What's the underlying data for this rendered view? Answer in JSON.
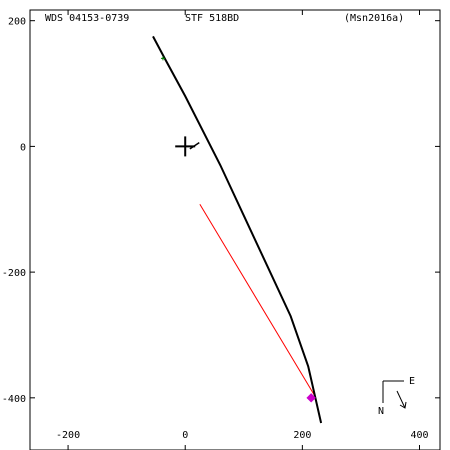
{
  "chart_data": {
    "type": "scatter",
    "header": {
      "left": "WDS 04153-0739",
      "center": "STF 518BD",
      "right": "(Msn2016a)"
    },
    "x_ticks": [
      -200,
      0,
      200,
      400
    ],
    "y_ticks": [
      200,
      0,
      -200,
      -400
    ],
    "xlim": [
      -265,
      435
    ],
    "ylim": [
      -483,
      217
    ],
    "grid": false,
    "primary_star": {
      "x": 0,
      "y": 0
    },
    "orbit_path": {
      "color": "#000000",
      "points": [
        [
          -55,
          175
        ],
        [
          -35,
          140
        ],
        [
          0,
          80
        ],
        [
          30,
          25
        ],
        [
          60,
          -30
        ],
        [
          100,
          -110
        ],
        [
          140,
          -190
        ],
        [
          180,
          -270
        ],
        [
          210,
          -350
        ],
        [
          232,
          -440
        ]
      ]
    },
    "residual_line": {
      "color": "#ff0000",
      "points": [
        [
          25,
          -92
        ],
        [
          222,
          -398
        ]
      ]
    },
    "tick_mark_near_origin": {
      "points": [
        [
          8,
          -4
        ],
        [
          24,
          6
        ]
      ]
    },
    "observations": [
      {
        "x": -38,
        "y": 140,
        "color": "#008000",
        "marker": "plus"
      },
      {
        "x": 215,
        "y": -400,
        "color": "#cc00cc",
        "marker": "diamond"
      }
    ],
    "orientation": {
      "east_label": "E",
      "north_label": "N"
    }
  }
}
